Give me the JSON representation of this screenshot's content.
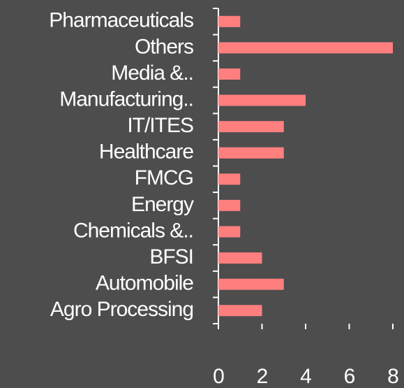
{
  "chart_data": {
    "type": "hbar",
    "categories": [
      "Pharmaceuticals",
      "Others",
      "Media &..",
      "Manufacturing..",
      "IT/ITES",
      "Healthcare",
      "FMCG",
      "Energy",
      "Chemicals &..",
      "BFSI",
      "Automobile",
      "Agro Processing"
    ],
    "values": [
      1,
      8,
      1,
      4,
      3,
      3,
      1,
      1,
      1,
      2,
      3,
      2
    ],
    "color": "#ff7f7f",
    "xlim": [
      0,
      8
    ],
    "xticks": [
      0,
      2,
      4,
      6,
      8
    ],
    "grid": false
  }
}
